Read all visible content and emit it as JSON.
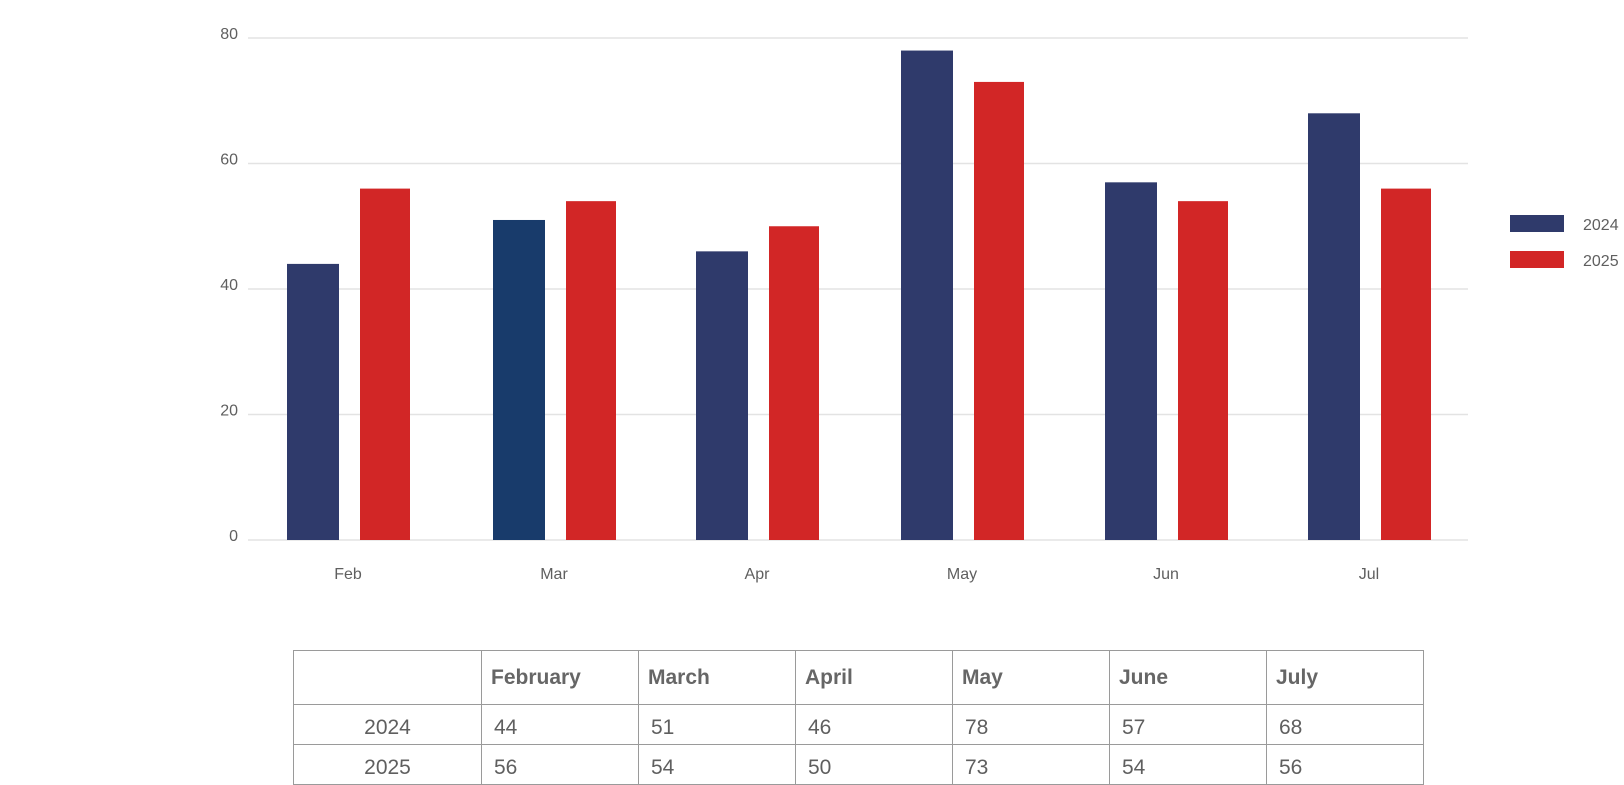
{
  "chart_data": {
    "type": "bar",
    "categories": [
      "Feb",
      "Mar",
      "Apr",
      "May",
      "Jun",
      "Jul"
    ],
    "series": [
      {
        "name": "2024",
        "values": [
          44,
          51,
          46,
          78,
          57,
          68
        ],
        "color": "#2f3a6b"
      },
      {
        "name": "2025",
        "values": [
          56,
          54,
          50,
          73,
          54,
          56
        ],
        "color": "#d22626"
      }
    ],
    "highlight_color": "#183b6b",
    "ylim": [
      0,
      80
    ],
    "yticks": [
      0,
      20,
      40,
      60,
      80
    ],
    "grid": true,
    "legend_position": "right",
    "title": "",
    "xlabel": "",
    "ylabel": ""
  },
  "table": {
    "headers": [
      "",
      "February",
      "March",
      "April",
      "May",
      "June",
      "July"
    ],
    "rows": [
      {
        "label": "2024",
        "values": [
          "44",
          "51",
          "46",
          "78",
          "57",
          "68"
        ]
      },
      {
        "label": "2025",
        "values": [
          "56",
          "54",
          "50",
          "73",
          "54",
          "56"
        ]
      }
    ]
  }
}
